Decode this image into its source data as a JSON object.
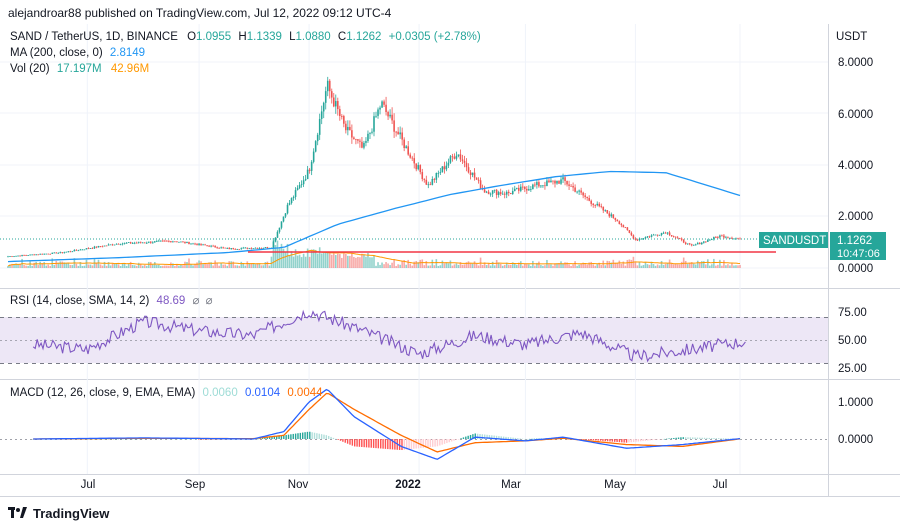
{
  "header": "alejandroar88 published on TradingView.com, Jul 12, 2022 09:12 UTC-4",
  "footer_brand": "TradingView",
  "price_pane": {
    "symbol_line": "SAND / TetherUS, 1D, BINANCE",
    "ohlc": [
      {
        "k": "O",
        "v": "1.0955"
      },
      {
        "k": "H",
        "v": "1.1339"
      },
      {
        "k": "L",
        "v": "1.0880"
      },
      {
        "k": "C",
        "v": "1.1262"
      }
    ],
    "change": "+0.0305 (+2.78%)",
    "ma_label": "MA (200, close, 0)",
    "ma_value": "2.8149",
    "vol_label": "Vol (20)",
    "vol_value1": "17.197M",
    "vol_value2": "42.96M",
    "currency": "USDT",
    "ticks": [
      "8.0000",
      "6.0000",
      "4.0000",
      "2.0000",
      "0.0000"
    ],
    "badge_symbol": "SANDUSDT",
    "badge_price": "1.1262",
    "badge_countdown": "10:47:06"
  },
  "rsi_pane": {
    "label": "RSI (14, close, SMA, 14, 2)",
    "value": "48.69",
    "empty1": "⌀",
    "empty2": "⌀",
    "ticks": [
      "75.00",
      "50.00",
      "25.00"
    ]
  },
  "macd_pane": {
    "label": "MACD (12, 26, close, 9, EMA, EMA)",
    "hist_value": "0.0060",
    "macd_value": "0.0104",
    "signal_value": "0.0044",
    "ticks": [
      "1.0000",
      "0.0000"
    ]
  },
  "time_axis": {
    "labels": [
      {
        "text": "Jul",
        "bold": false
      },
      {
        "text": "Sep",
        "bold": false
      },
      {
        "text": "Nov",
        "bold": false
      },
      {
        "text": "2022",
        "bold": true
      },
      {
        "text": "Mar",
        "bold": false
      },
      {
        "text": "May",
        "bold": false
      },
      {
        "text": "Jul",
        "bold": false
      }
    ]
  },
  "colors": {
    "up": "#26a69a",
    "down": "#ef5350",
    "ma": "#2196f3",
    "vol_ma": "#ff9800",
    "rsi": "#7e57c2",
    "rsi_band": "#ede7f6",
    "macd": "#2962ff",
    "signal": "#ff6d00",
    "support": "#f23645",
    "grid": "#f0f3fa",
    "axis_text": "#131722"
  },
  "chart_data": [
    {
      "type": "candlestick",
      "title": "SAND / TetherUS, 1D, BINANCE",
      "x": [
        "2021-06-01",
        "2021-07-01",
        "2021-08-01",
        "2021-09-01",
        "2021-10-01",
        "2021-10-25",
        "2021-11-03",
        "2021-11-15",
        "2021-11-25",
        "2021-12-05",
        "2021-12-15",
        "2021-12-25",
        "2022-01-05",
        "2022-01-20",
        "2022-02-05",
        "2022-02-20",
        "2022-03-05",
        "2022-03-20",
        "2022-04-05",
        "2022-04-20",
        "2022-05-05",
        "2022-05-15",
        "2022-06-01",
        "2022-06-15",
        "2022-07-01",
        "2022-07-12"
      ],
      "close": [
        0.45,
        0.6,
        0.95,
        1.05,
        0.75,
        0.8,
        2.4,
        3.8,
        7.1,
        5.4,
        4.6,
        6.4,
        5.0,
        3.2,
        4.5,
        3.0,
        2.9,
        3.2,
        3.4,
        2.6,
        1.85,
        1.1,
        1.4,
        0.85,
        1.25,
        1.1262
      ],
      "ylim": [
        0,
        8.5
      ],
      "overlays": [
        {
          "name": "MA (200, close, 0)",
          "x": [
            "2021-06-01",
            "2021-08-01",
            "2021-10-01",
            "2021-11-01",
            "2021-12-01",
            "2022-01-01",
            "2022-02-01",
            "2022-03-01",
            "2022-04-01",
            "2022-05-01",
            "2022-06-01",
            "2022-07-12"
          ],
          "y": [
            0.25,
            0.4,
            0.6,
            0.8,
            1.7,
            2.3,
            2.85,
            3.2,
            3.55,
            3.75,
            3.7,
            2.8149
          ]
        },
        {
          "name": "support",
          "y": 0.56
        }
      ]
    },
    {
      "type": "line",
      "title": "RSI (14, close, SMA, 14, 2)",
      "x": [
        "2021-06",
        "2021-07",
        "2021-08",
        "2021-09",
        "2021-10",
        "2021-11",
        "2021-12",
        "2022-01",
        "2022-02",
        "2022-03",
        "2022-04",
        "2022-05",
        "2022-06",
        "2022-07"
      ],
      "series": [
        {
          "name": "RSI",
          "values": [
            45,
            40,
            70,
            60,
            55,
            82,
            60,
            35,
            55,
            45,
            58,
            32,
            40,
            48.69
          ]
        }
      ],
      "ylim": [
        20,
        85
      ]
    },
    {
      "type": "line",
      "title": "MACD (12, 26, close, 9, EMA, EMA)",
      "x": [
        "2021-06",
        "2021-08",
        "2021-10",
        "2021-11-01",
        "2021-11-15",
        "2021-11-25",
        "2021-12-10",
        "2022-01-05",
        "2022-01-25",
        "2022-02-15",
        "2022-03-15",
        "2022-04-05",
        "2022-05-10",
        "2022-06-10",
        "2022-07-12"
      ],
      "series": [
        {
          "name": "MACD",
          "values": [
            0.0,
            0.03,
            0.0,
            0.2,
            1.0,
            1.35,
            0.6,
            -0.2,
            -0.55,
            0.05,
            -0.05,
            0.05,
            -0.25,
            -0.15,
            0.0104
          ]
        },
        {
          "name": "Signal",
          "values": [
            0.0,
            0.02,
            0.01,
            0.1,
            0.8,
            1.25,
            0.8,
            0.1,
            -0.35,
            -0.1,
            -0.05,
            0.02,
            -0.15,
            -0.2,
            0.0044
          ]
        }
      ],
      "ylim": [
        -0.8,
        1.6
      ]
    }
  ]
}
